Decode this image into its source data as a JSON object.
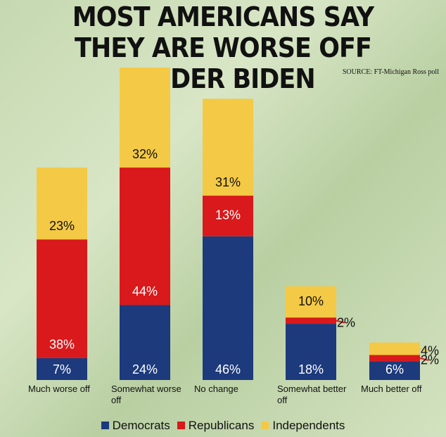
{
  "chart_data": {
    "type": "stacked_bar",
    "title": "MOST AMERICANS SAY THEY ARE WORSE OFF UNDER BIDEN",
    "source": "SOURCE: FT-Michigan Ross poll",
    "categories": [
      "Much worse off",
      "Somewhat worse off",
      "No change",
      "Somewhat better off",
      "Much better off"
    ],
    "series": [
      {
        "name": "Democrats",
        "color": "#1c3a7c",
        "values": [
          7,
          24,
          46,
          18,
          6
        ],
        "value_labels": [
          "7%",
          "24%",
          "46%",
          "18%",
          "6%"
        ]
      },
      {
        "name": "Republicans",
        "color": "#d9191b",
        "values": [
          38,
          44,
          13,
          2,
          2
        ],
        "value_labels": [
          "38%",
          "44%",
          "13%",
          "2%",
          "2%"
        ]
      },
      {
        "name": "Independents",
        "color": "#f4c945",
        "values": [
          23,
          32,
          31,
          10,
          4
        ],
        "value_labels": [
          "23%",
          "32%",
          "31%",
          "10%",
          "4%"
        ]
      }
    ],
    "legend": "bottom"
  }
}
